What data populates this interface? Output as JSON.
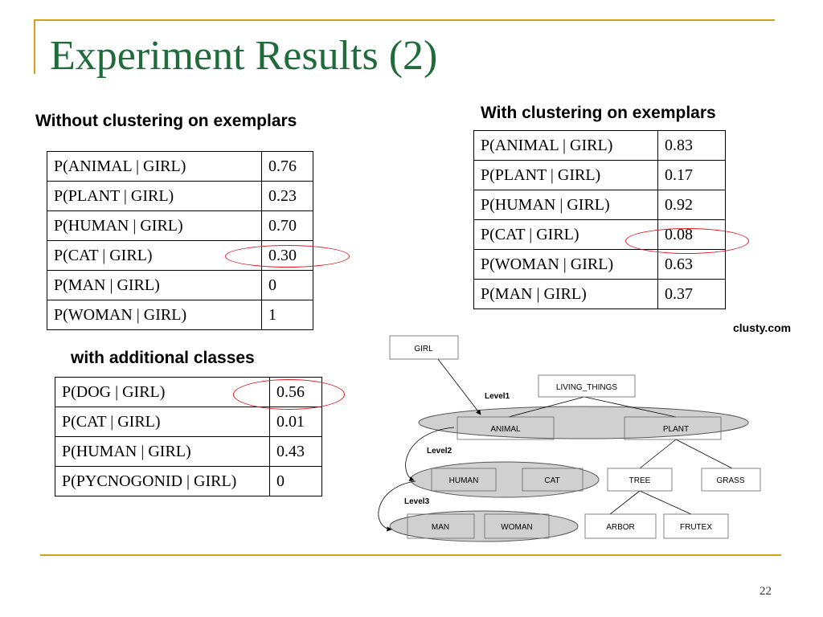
{
  "title": "Experiment Results (2)",
  "without": {
    "heading": "Without clustering on exemplars",
    "rows": [
      {
        "label": "P(ANIMAL | GIRL)",
        "value": "0.76"
      },
      {
        "label": "P(PLANT | GIRL)",
        "value": "0.23"
      },
      {
        "label": "P(HUMAN | GIRL)",
        "value": "0.70"
      },
      {
        "label": "P(CAT | GIRL)",
        "value": "0.30"
      },
      {
        "label": "P(MAN | GIRL)",
        "value": "0"
      },
      {
        "label": "P(WOMAN | GIRL)",
        "value": "1"
      }
    ]
  },
  "with": {
    "heading": "With clustering on exemplars",
    "rows": [
      {
        "label": "P(ANIMAL | GIRL)",
        "value": "0.83"
      },
      {
        "label": "P(PLANT | GIRL)",
        "value": "0.17"
      },
      {
        "label": "P(HUMAN | GIRL)",
        "value": "0.92"
      },
      {
        "label": "P(CAT | GIRL)",
        "value": "0.08"
      },
      {
        "label": "P(WOMAN | GIRL)",
        "value": "0.63"
      },
      {
        "label": "P(MAN | GIRL)",
        "value": "0.37"
      }
    ]
  },
  "additional": {
    "heading": "with additional classes",
    "rows": [
      {
        "label": "P(DOG | GIRL)",
        "value": "0.56"
      },
      {
        "label": "P(CAT | GIRL)",
        "value": "0.01"
      },
      {
        "label": "P(HUMAN | GIRL)",
        "value": "0.43"
      },
      {
        "label": "P(PYCNOGONID | GIRL)",
        "value": "0"
      }
    ]
  },
  "source": "clusty.com",
  "tree": {
    "nodes": {
      "girl": "GIRL",
      "living_things": "LIVING_THINGS",
      "animal": "ANIMAL",
      "plant": "PLANT",
      "human": "HUMAN",
      "cat": "CAT",
      "tree": "TREE",
      "grass": "GRASS",
      "man": "MAN",
      "woman": "WOMAN",
      "arbor": "ARBOR",
      "frutex": "FRUTEX"
    },
    "levels": [
      "Level1",
      "Level2",
      "Level3"
    ]
  },
  "page_number": "22",
  "colors": {
    "title": "#1f6b3a",
    "rule": "#d4a21a",
    "highlight": "#e0191f",
    "cluster_fill": "#d0d0d0"
  }
}
